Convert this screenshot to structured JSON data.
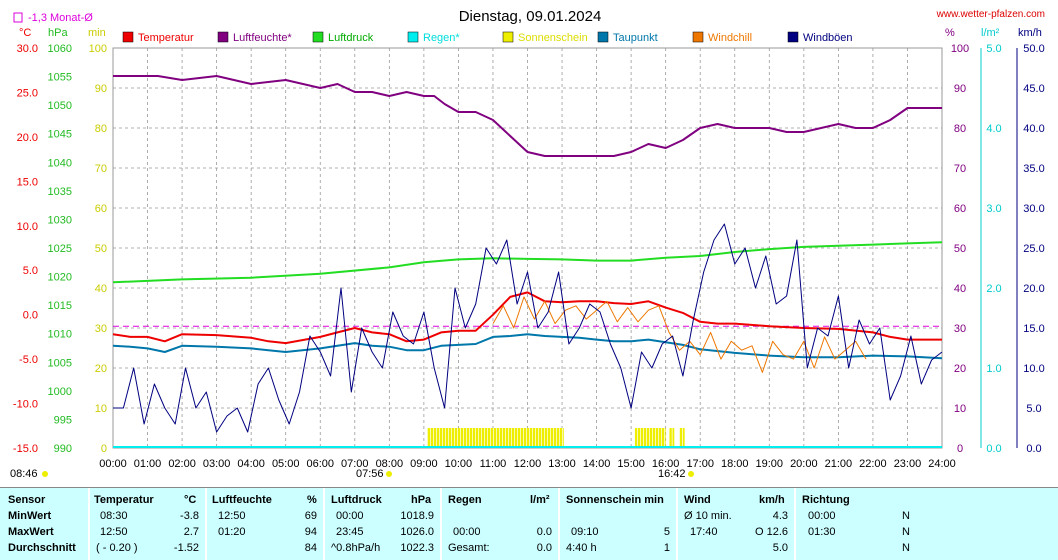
{
  "header": {
    "title": "Dienstag, 09.01.2024",
    "website": "www.wetter-pfalzen.com",
    "monthly_avg": "-1,3 Monat-Ø"
  },
  "axis_units": {
    "temp": "°C",
    "pressure": "hPa",
    "sun": "min",
    "humidity": "%",
    "rain": "l/m²",
    "wind": "km/h"
  },
  "legend": [
    {
      "label": "Temperatur",
      "color": "#ee0000"
    },
    {
      "label": "Luftfeuchte*",
      "color": "#800080"
    },
    {
      "label": "Luftdruck",
      "color": "#22dd22"
    },
    {
      "label": "Regen*",
      "color": "#00eeee"
    },
    {
      "label": "Sonnenschein",
      "color": "#eeee00"
    },
    {
      "label": "Taupunkt",
      "color": "#0077aa"
    },
    {
      "label": "Windchill",
      "color": "#ee7700"
    },
    {
      "label": "Windböen",
      "color": "#000080"
    }
  ],
  "markers": {
    "sunrise": "08:46",
    "sun_start": "07:56",
    "sun_end": "16:42"
  },
  "chart_data": {
    "type": "line",
    "x_tick_labels": [
      "00:00",
      "01:00",
      "02:00",
      "03:00",
      "04:00",
      "05:00",
      "06:00",
      "07:00",
      "08:00",
      "09:00",
      "10:00",
      "11:00",
      "12:00",
      "13:00",
      "14:00",
      "15:00",
      "16:00",
      "17:00",
      "18:00",
      "19:00",
      "20:00",
      "21:00",
      "22:00",
      "23:00",
      "24:00"
    ],
    "axes": {
      "temp": {
        "range": [
          -15,
          30
        ],
        "ticks": [
          "30.0",
          "25.0",
          "20.0",
          "15.0",
          "10.0",
          "5.0",
          "0.0",
          "-5.0",
          "-10.0",
          "-15.0"
        ]
      },
      "pressure": {
        "range": [
          990,
          1060
        ],
        "ticks": [
          "1060",
          "1055",
          "1050",
          "1045",
          "1040",
          "1035",
          "1030",
          "1025",
          "1020",
          "1015",
          "1010",
          "1005",
          "1000",
          "995",
          "990"
        ]
      },
      "sun": {
        "range": [
          0,
          100
        ],
        "ticks": [
          "100",
          "90",
          "80",
          "70",
          "60",
          "50",
          "40",
          "30",
          "20",
          "10",
          "0"
        ]
      },
      "humidity": {
        "range": [
          0,
          100
        ],
        "ticks": [
          "100",
          "90",
          "80",
          "70",
          "60",
          "50",
          "40",
          "30",
          "20",
          "10",
          "0"
        ]
      },
      "rain": {
        "range": [
          0,
          5
        ],
        "ticks": [
          "5.0",
          "4.0",
          "3.0",
          "2.0",
          "1.0",
          "0.0"
        ]
      },
      "wind": {
        "range": [
          0,
          50
        ],
        "ticks": [
          "50.0",
          "45.0",
          "40.0",
          "35.0",
          "30.0",
          "25.0",
          "20.0",
          "15.0",
          "10.0",
          "5.0",
          "0.0"
        ]
      }
    },
    "monthly_avg_temp": -1.3,
    "series": [
      {
        "name": "Luftfeuchte*",
        "axis": "humidity",
        "color": "#800080",
        "x": [
          0,
          1,
          1.3,
          2,
          3,
          3.5,
          4,
          5,
          5.5,
          6,
          6.5,
          7,
          7.5,
          8,
          8.5,
          9,
          9.3,
          9.6,
          10,
          10.5,
          11,
          11.5,
          12,
          12.5,
          13,
          13.5,
          14,
          14.5,
          15,
          15.5,
          16,
          16.5,
          17,
          17.5,
          18,
          18.5,
          19,
          19.5,
          20,
          20.5,
          21,
          21.5,
          22,
          22.5,
          23,
          23.5,
          24
        ],
        "y": [
          93,
          93,
          93,
          92,
          93,
          92,
          91,
          92,
          91,
          90,
          91,
          89,
          89,
          88,
          89,
          88,
          88,
          86,
          84,
          84,
          82,
          78,
          74,
          73,
          73,
          73,
          73,
          73,
          74,
          76,
          75,
          77,
          80,
          81,
          80,
          80,
          80,
          79,
          79,
          80,
          81,
          80,
          80,
          82,
          85,
          85,
          85
        ]
      },
      {
        "name": "Luftdruck",
        "axis": "pressure",
        "color": "#22dd22",
        "x": [
          0,
          2,
          4,
          6,
          8,
          9,
          10,
          11,
          12,
          13,
          14,
          15,
          16,
          17,
          18,
          19,
          20,
          21,
          22,
          23,
          24
        ],
        "y": [
          1019,
          1019.5,
          1019.8,
          1020.5,
          1021.6,
          1022.5,
          1023.0,
          1023.2,
          1023.1,
          1023.0,
          1022.8,
          1022.8,
          1023.3,
          1023.6,
          1024.3,
          1024.8,
          1025.2,
          1025.4,
          1025.6,
          1025.8,
          1026.0
        ]
      },
      {
        "name": "Temperatur",
        "axis": "temp",
        "color": "#ee0000",
        "x": [
          0,
          0.5,
          1,
          1.5,
          2,
          3,
          4,
          4.5,
          5,
          6,
          6.5,
          7,
          7.5,
          8,
          8.5,
          9,
          9.5,
          10,
          10.5,
          11,
          11.5,
          12,
          12.5,
          13,
          13.5,
          14,
          14.5,
          15,
          15.5,
          16,
          16.5,
          17,
          17.5,
          18,
          19,
          20,
          21,
          22,
          22.5,
          23,
          24
        ],
        "y": [
          -2.2,
          -2.5,
          -2.5,
          -3.0,
          -2.2,
          -2.3,
          -2.6,
          -3.0,
          -3.2,
          -2.5,
          -2.0,
          -1.5,
          -2.0,
          -2.2,
          -3.0,
          -2.8,
          -2.0,
          -1.8,
          -1.8,
          0.0,
          2.0,
          2.5,
          1.5,
          1.4,
          1.5,
          1.5,
          1.3,
          1.2,
          1.5,
          0.8,
          0.2,
          -0.8,
          -1.0,
          -1.0,
          -1.3,
          -1.5,
          -1.6,
          -2.0,
          -2.5,
          -2.8,
          -2.8
        ]
      },
      {
        "name": "Taupunkt",
        "axis": "temp",
        "color": "#0077aa",
        "x": [
          0,
          0.5,
          1,
          1.5,
          2,
          3,
          4,
          4.5,
          5,
          6,
          6.5,
          7,
          7.5,
          8,
          8.5,
          9,
          9.5,
          10,
          10.5,
          11,
          11.5,
          12,
          12.5,
          13,
          13.5,
          14,
          14.5,
          15,
          15.5,
          16,
          16.5,
          17,
          18,
          19,
          20,
          21,
          22,
          23,
          24
        ],
        "y": [
          -3.5,
          -3.6,
          -3.8,
          -4.2,
          -3.5,
          -3.6,
          -3.8,
          -4.0,
          -4.2,
          -3.8,
          -3.5,
          -3.2,
          -3.5,
          -3.6,
          -4.0,
          -4.0,
          -3.5,
          -3.4,
          -3.3,
          -2.5,
          -2.4,
          -2.2,
          -2.4,
          -2.5,
          -2.6,
          -2.8,
          -3.0,
          -3.0,
          -2.8,
          -3.1,
          -3.4,
          -3.9,
          -4.3,
          -4.6,
          -4.8,
          -4.8,
          -4.6,
          -4.7,
          -4.9
        ]
      },
      {
        "name": "Windchill",
        "axis": "temp",
        "color": "#ee7700",
        "x": [
          11,
          11.3,
          11.6,
          11.9,
          12.2,
          12.5,
          12.8,
          13.1,
          13.4,
          13.7,
          14,
          14.3,
          14.6,
          14.9,
          15.2,
          15.5,
          15.8,
          16.1,
          16.4,
          16.7,
          17,
          17.3,
          17.6,
          17.9,
          18.2,
          18.5,
          18.8,
          19.1,
          19.4,
          19.7,
          20,
          20.3,
          20.6,
          20.9,
          21.2,
          21.5,
          21.8
        ],
        "y": [
          -1.0,
          1.0,
          -1.5,
          2.0,
          -0.5,
          1.5,
          -1.0,
          0.5,
          1.0,
          -0.5,
          0.5,
          1.5,
          -0.8,
          0.8,
          -0.8,
          0.5,
          1.0,
          -2.0,
          -4.0,
          -3.0,
          -4.5,
          -2.0,
          -5.0,
          -3.0,
          -4.0,
          -3.5,
          -6.5,
          -3.0,
          -4.5,
          -5.0,
          -3.0,
          -6.0,
          -2.5,
          -5.0,
          -4.0,
          -3.0,
          -5.0
        ]
      },
      {
        "name": "Windböen",
        "axis": "wind",
        "color": "#000080",
        "x": [
          0,
          0.3,
          0.6,
          0.9,
          1.2,
          1.5,
          1.8,
          2.1,
          2.4,
          2.7,
          3.0,
          3.3,
          3.6,
          3.9,
          4.2,
          4.5,
          4.8,
          5.1,
          5.4,
          5.7,
          6.0,
          6.3,
          6.6,
          6.9,
          7.2,
          7.5,
          7.8,
          8.1,
          8.4,
          8.7,
          9.0,
          9.3,
          9.6,
          9.9,
          10.2,
          10.5,
          10.8,
          11.1,
          11.4,
          11.7,
          12.0,
          12.3,
          12.6,
          12.9,
          13.2,
          13.5,
          13.8,
          14.1,
          14.4,
          14.7,
          15.0,
          15.3,
          15.6,
          15.9,
          16.2,
          16.5,
          16.8,
          17.1,
          17.4,
          17.7,
          18.0,
          18.3,
          18.6,
          18.9,
          19.2,
          19.5,
          19.8,
          20.1,
          20.4,
          20.7,
          21.0,
          21.3,
          21.6,
          21.9,
          22.2,
          22.5,
          22.8,
          23.1,
          23.4,
          23.7,
          24
        ],
        "y": [
          5,
          5,
          10,
          3,
          8,
          5,
          3,
          10,
          5,
          7,
          2,
          4,
          5,
          2,
          8,
          10,
          6,
          3,
          7,
          14,
          12,
          9,
          20,
          7,
          15,
          12,
          10,
          17,
          14,
          13,
          17,
          10,
          5,
          20,
          15,
          18,
          25,
          23,
          26,
          18,
          22,
          15,
          17,
          22,
          13,
          15,
          18,
          17,
          13,
          10,
          5,
          12,
          10,
          13,
          14,
          9,
          16,
          22,
          26,
          28,
          23,
          25,
          20,
          24,
          18,
          19,
          26,
          10,
          15,
          14,
          19,
          10,
          16,
          13,
          15,
          6,
          9,
          14,
          8,
          11,
          12
        ]
      }
    ],
    "rain_total": 0.0,
    "sunshine": {
      "start": "09:10",
      "end": "16:42",
      "blocks": [
        [
          9.1,
          13.05
        ],
        [
          15.1,
          16.0
        ],
        [
          16.1,
          16.25
        ],
        [
          16.4,
          16.55
        ]
      ]
    }
  },
  "stats": {
    "sensor": {
      "header": "Sensor",
      "rows": [
        "MinWert",
        "MaxWert",
        "Durchschnitt"
      ]
    },
    "temperature": {
      "header": "Temperatur",
      "unit": "°C",
      "rows": [
        [
          "08:30",
          "-3.8"
        ],
        [
          "12:50",
          "2.7"
        ],
        [
          "( - 0.20 )",
          "-1.52"
        ]
      ]
    },
    "humidity": {
      "header": "Luftfeuchte",
      "unit": "%",
      "rows": [
        [
          "12:50",
          "69"
        ],
        [
          "01:20",
          "94"
        ],
        [
          "",
          "84"
        ]
      ]
    },
    "pressure": {
      "header": "Luftdruck",
      "unit": "hPa",
      "rows": [
        [
          "00:00",
          "1018.9"
        ],
        [
          "23:45",
          "1026.0"
        ],
        [
          "^0.8hPa/h",
          "1022.3"
        ]
      ]
    },
    "rain": {
      "header": "Regen",
      "unit": "l/m²",
      "rows": [
        [
          "",
          ""
        ],
        [
          "00:00",
          "0.0"
        ],
        [
          "Gesamt:",
          "0.0"
        ]
      ]
    },
    "sun": {
      "header": "Sonnenschein min",
      "rows": [
        [
          "",
          ""
        ],
        [
          "09:10",
          "5"
        ],
        [
          "4:40 h",
          "1"
        ]
      ]
    },
    "wind": {
      "header": "Wind",
      "unit": "km/h",
      "rows": [
        [
          "Ø 10 min.",
          "4.3"
        ],
        [
          "17:40",
          "O 12.6"
        ],
        [
          "",
          "5.0"
        ]
      ]
    },
    "direction": {
      "header": "Richtung",
      "rows": [
        [
          "00:00",
          "N"
        ],
        [
          "01:30",
          "N"
        ],
        [
          "",
          "N"
        ]
      ]
    }
  }
}
